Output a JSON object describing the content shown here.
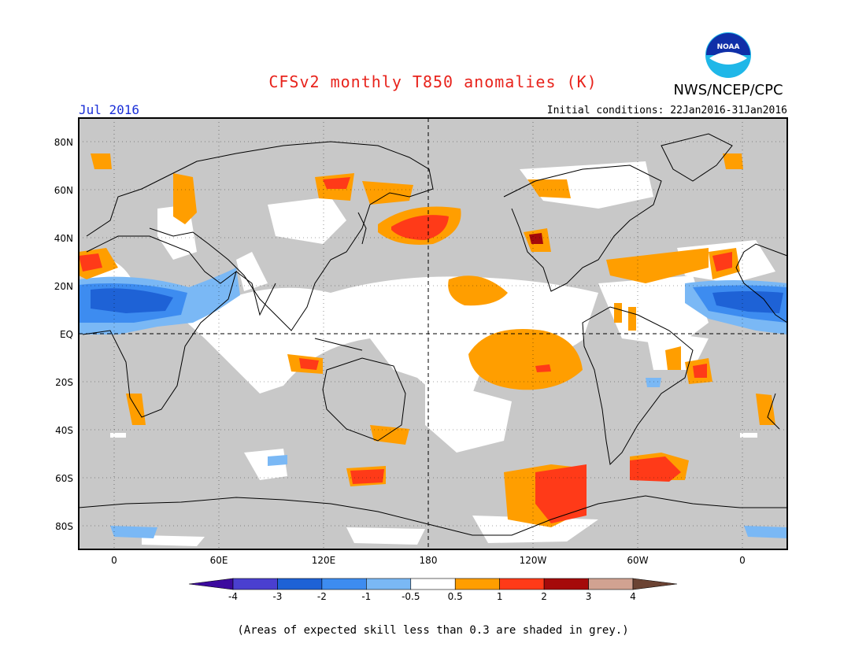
{
  "header": {
    "title": "CFSv2 monthly T850 anomalies (K)",
    "agency": "NWS/NCEP/CPC",
    "logo_text": "NOAA",
    "month": "Jul 2016",
    "initial_conditions": "Initial conditions: 22Jan2016-31Jan2016"
  },
  "map": {
    "lat_labels": [
      "80N",
      "60N",
      "40N",
      "20N",
      "EQ",
      "20S",
      "40S",
      "60S",
      "80S"
    ],
    "lon_labels": [
      "0",
      "60E",
      "120E",
      "180",
      "120W",
      "60W",
      "0"
    ],
    "grey_shading": "#c8c8c8",
    "ocean_land_base": "#c8c8c8"
  },
  "legend": {
    "tick_labels": [
      "-4",
      "-3",
      "-2",
      "-1",
      "-0.5",
      "0.5",
      "1",
      "2",
      "3",
      "4"
    ],
    "colors": [
      "#3c0a9e",
      "#4a3fd0",
      "#1e62d6",
      "#3d8cf0",
      "#7ab8f5",
      "#ffffff",
      "#ff9e00",
      "#ff3a18",
      "#a50a0a",
      "#d1a291",
      "#6b4333"
    ]
  },
  "footnote": "(Areas of expected skill less than 0.3 are shaded in grey.)"
}
